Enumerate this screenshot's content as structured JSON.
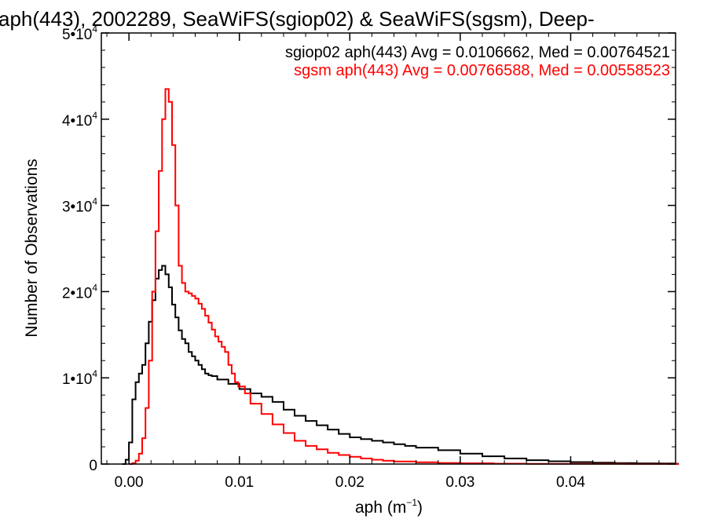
{
  "chart_data": {
    "type": "line",
    "title": "aph(443), 2002289, SeaWiFS(sgiop02) & SeaWiFS(sgsm), Deep-",
    "xlabel": "aph (m",
    "xlabel_exp": "−1",
    "xlabel_close": ")",
    "ylabel": "Number of Observations",
    "xlim": [
      -0.0025,
      0.0495
    ],
    "ylim": [
      0,
      50000
    ],
    "xticks": [
      {
        "value": 0.0,
        "label": "0.00"
      },
      {
        "value": 0.01,
        "label": "0.01"
      },
      {
        "value": 0.02,
        "label": "0.02"
      },
      {
        "value": 0.03,
        "label": "0.03"
      },
      {
        "value": 0.04,
        "label": "0.04"
      }
    ],
    "yticks": [
      {
        "value": 0,
        "label": "0",
        "exp": ""
      },
      {
        "value": 10000,
        "label": "1•10",
        "exp": "4"
      },
      {
        "value": 20000,
        "label": "2•10",
        "exp": "4"
      },
      {
        "value": 30000,
        "label": "3•10",
        "exp": "4"
      },
      {
        "value": 40000,
        "label": "4•10",
        "exp": "4"
      },
      {
        "value": 50000,
        "label": "5•10",
        "exp": "4"
      }
    ],
    "grid": false,
    "legend_position": "top-right",
    "annotations": [
      {
        "text": "sgiop02 aph(443) Avg = 0.0106662, Med = 0.00764521",
        "color": "#000000"
      },
      {
        "text": "sgsm aph(443) Avg = 0.00766588, Med = 0.00558523",
        "color": "#ff0000"
      }
    ],
    "series": [
      {
        "color": "#000000",
        "x": [
          -0.0006,
          -0.0003,
          0.0,
          0.0003,
          0.0006,
          0.0009,
          0.0012,
          0.0015,
          0.0018,
          0.0021,
          0.0024,
          0.0027,
          0.003,
          0.0033,
          0.0036,
          0.0039,
          0.0042,
          0.0045,
          0.0048,
          0.0051,
          0.0054,
          0.0057,
          0.006,
          0.0063,
          0.0066,
          0.0069,
          0.0072,
          0.0075,
          0.008,
          0.009,
          0.01,
          0.011,
          0.012,
          0.013,
          0.014,
          0.015,
          0.016,
          0.017,
          0.018,
          0.019,
          0.02,
          0.021,
          0.022,
          0.023,
          0.024,
          0.025,
          0.026,
          0.028,
          0.03,
          0.032,
          0.034,
          0.036,
          0.038,
          0.04,
          0.042,
          0.044,
          0.046,
          0.048,
          0.0495
        ],
        "y": [
          0,
          500,
          2500,
          7500,
          9500,
          10500,
          11500,
          14000,
          16500,
          19000,
          21500,
          22500,
          23000,
          22000,
          20500,
          18500,
          17000,
          15500,
          14500,
          14000,
          13000,
          12500,
          12000,
          11500,
          11000,
          10500,
          10300,
          10200,
          9800,
          9300,
          8700,
          8200,
          7800,
          7200,
          6300,
          5600,
          5000,
          4500,
          4000,
          3500,
          3100,
          2900,
          2700,
          2500,
          2300,
          2100,
          1900,
          1600,
          1200,
          900,
          650,
          450,
          320,
          230,
          160,
          110,
          80,
          60,
          40
        ]
      },
      {
        "color": "#ff0000",
        "x": [
          0.0,
          0.0003,
          0.0006,
          0.0009,
          0.0012,
          0.0015,
          0.0018,
          0.0021,
          0.0024,
          0.0027,
          0.003,
          0.0033,
          0.0036,
          0.0039,
          0.0042,
          0.0045,
          0.0048,
          0.0051,
          0.0054,
          0.0057,
          0.006,
          0.0063,
          0.0066,
          0.0069,
          0.0072,
          0.0075,
          0.0078,
          0.0081,
          0.0084,
          0.0087,
          0.009,
          0.0093,
          0.0096,
          0.0099,
          0.0105,
          0.011,
          0.012,
          0.013,
          0.014,
          0.015,
          0.016,
          0.017,
          0.018,
          0.019,
          0.02,
          0.021,
          0.022,
          0.023,
          0.024,
          0.026,
          0.028,
          0.03,
          0.033,
          0.036,
          0.04,
          0.045,
          0.0495
        ],
        "y": [
          0,
          100,
          400,
          1200,
          3000,
          6500,
          12000,
          20000,
          27000,
          34000,
          40000,
          43500,
          42000,
          37000,
          30000,
          23000,
          21000,
          20000,
          19800,
          19500,
          19200,
          18600,
          18000,
          17200,
          16400,
          15600,
          14800,
          14200,
          13600,
          13000,
          11500,
          10500,
          9500,
          9000,
          8200,
          7000,
          5800,
          4600,
          3600,
          2700,
          2100,
          1700,
          1300,
          1050,
          850,
          650,
          500,
          380,
          300,
          200,
          130,
          90,
          50,
          30,
          15,
          8,
          0
        ]
      }
    ]
  }
}
